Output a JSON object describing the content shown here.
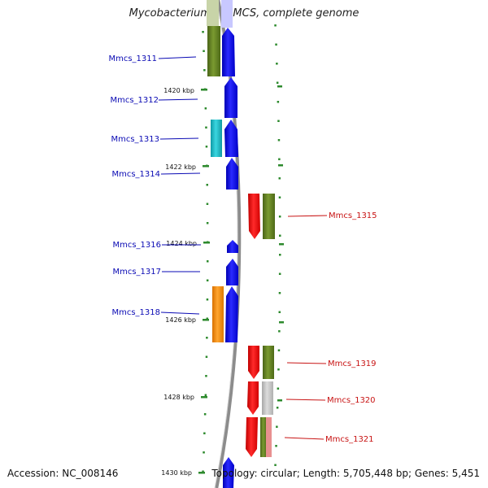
{
  "title": "Mycobacterium sp. MCS, complete genome",
  "footer": {
    "accession": "Accession: NC_008146",
    "summary": "Topology: circular; Length: 5,705,448 bp; Genes: 5,451"
  },
  "colors": {
    "blue": "#0a0ae6",
    "red": "#ee1111",
    "olive": "#5b7a1e",
    "cyan": "#1ab8c4",
    "orange": "#f08c10",
    "gray": "#c4c4c4",
    "pink": "#e88a8a",
    "tick": "#2d8a2d",
    "left_label": "#0a0ab4",
    "right_label": "#c81414",
    "backbone": "#909090"
  },
  "ticks": [
    {
      "label": "1420 kbp"
    },
    {
      "label": "1422 kbp"
    },
    {
      "label": "1424 kbp"
    },
    {
      "label": "1426 kbp"
    },
    {
      "label": "1428 kbp"
    },
    {
      "label": "1430 kbp"
    }
  ],
  "left_labels": [
    {
      "text": "Mmcs_1311"
    },
    {
      "text": "Mmcs_1312"
    },
    {
      "text": "Mmcs_1313"
    },
    {
      "text": "Mmcs_1314"
    },
    {
      "text": "Mmcs_1316"
    },
    {
      "text": "Mmcs_1317"
    },
    {
      "text": "Mmcs_1318"
    }
  ],
  "right_labels": [
    {
      "text": "Mmcs_1315"
    },
    {
      "text": "Mmcs_1319"
    },
    {
      "text": "Mmcs_1320"
    },
    {
      "text": "Mmcs_1321"
    }
  ]
}
